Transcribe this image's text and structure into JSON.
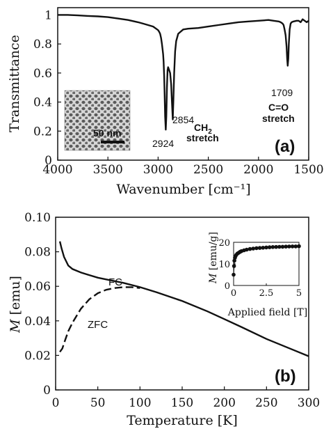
{
  "chart_data": [
    {
      "type": "line",
      "panel": "(a)",
      "xlabel": "Wavenumber [cm⁻¹]",
      "ylabel": "Transmittance",
      "xlim": [
        4000,
        1500
      ],
      "ylim": [
        0,
        1.05
      ],
      "x_ticks": [
        "4000",
        "3500",
        "3000",
        "2500",
        "2000",
        "1500"
      ],
      "y_ticks": [
        "0",
        "0.2",
        "0.4",
        "0.6",
        "0.8",
        "1"
      ],
      "series": [
        {
          "x": [
            4000,
            3900,
            3800,
            3700,
            3600,
            3500,
            3400,
            3300,
            3200,
            3150,
            3100,
            3050,
            3020,
            3000,
            2990,
            2980,
            2970,
            2962,
            2955,
            2950,
            2945,
            2940,
            2935,
            2930,
            2924,
            2918,
            2912,
            2906,
            2900,
            2890,
            2880,
            2870,
            2862,
            2854,
            2848,
            2840,
            2830,
            2820,
            2800,
            2750,
            2700,
            2600,
            2500,
            2400,
            2300,
            2200,
            2100,
            2000,
            1900,
            1850,
            1800,
            1780,
            1760,
            1750,
            1740,
            1730,
            1720,
            1715,
            1709,
            1703,
            1698,
            1690,
            1680,
            1670,
            1650,
            1620,
            1600,
            1580,
            1560,
            1540,
            1520,
            1500
          ],
          "y": [
            1.0,
            1.0,
            0.997,
            0.993,
            0.99,
            0.985,
            0.975,
            0.965,
            0.95,
            0.94,
            0.93,
            0.92,
            0.905,
            0.895,
            0.885,
            0.87,
            0.84,
            0.8,
            0.76,
            0.73,
            0.68,
            0.58,
            0.45,
            0.3,
            0.21,
            0.3,
            0.5,
            0.62,
            0.64,
            0.62,
            0.6,
            0.52,
            0.4,
            0.28,
            0.4,
            0.6,
            0.75,
            0.82,
            0.87,
            0.9,
            0.905,
            0.91,
            0.92,
            0.93,
            0.94,
            0.95,
            0.955,
            0.96,
            0.965,
            0.96,
            0.955,
            0.95,
            0.94,
            0.93,
            0.9,
            0.86,
            0.78,
            0.7,
            0.65,
            0.7,
            0.8,
            0.9,
            0.94,
            0.95,
            0.955,
            0.96,
            0.96,
            0.95,
            0.97,
            0.96,
            0.95,
            0.96
          ]
        }
      ],
      "annotations": [
        {
          "text": "2924",
          "x": 2924,
          "y": 0.18
        },
        {
          "text": "2854",
          "x": 2854,
          "y": 0.33
        },
        {
          "text": "1709",
          "x": 1709,
          "y": 0.49
        },
        {
          "text_main": "CH",
          "text_sub": "2",
          "text_line2": "stretch"
        },
        {
          "text_line1": "C=O",
          "text_line2": "stretch"
        }
      ],
      "inset": {
        "scale_bar_label": "50 nm"
      }
    },
    {
      "type": "line",
      "panel": "(b)",
      "xlabel": "Temperature [K]",
      "ylabel_main": "M",
      "ylabel_unit": "[emu]",
      "xlim": [
        0,
        300
      ],
      "ylim": [
        0,
        0.1
      ],
      "x_ticks": [
        "0",
        "50",
        "100",
        "150",
        "200",
        "250",
        "300"
      ],
      "y_ticks": [
        "0",
        "0.02",
        "0.04",
        "0.06",
        "0.08",
        "0.10"
      ],
      "series": [
        {
          "name": "FC",
          "x": [
            5,
            7,
            10,
            15,
            20,
            30,
            40,
            50,
            60,
            80,
            100,
            120,
            150,
            180,
            200,
            220,
            250,
            280,
            300
          ],
          "y": [
            0.086,
            0.082,
            0.077,
            0.072,
            0.07,
            0.068,
            0.0665,
            0.065,
            0.064,
            0.062,
            0.0595,
            0.0565,
            0.0515,
            0.0455,
            0.041,
            0.0365,
            0.0295,
            0.0235,
            0.0195
          ]
        },
        {
          "name": "ZFC",
          "x": [
            5,
            8,
            10,
            15,
            20,
            25,
            30,
            40,
            50,
            60,
            70,
            80,
            90,
            100
          ],
          "y": [
            0.022,
            0.024,
            0.027,
            0.034,
            0.039,
            0.043,
            0.047,
            0.0525,
            0.056,
            0.058,
            0.059,
            0.0595,
            0.0595,
            0.059
          ]
        }
      ],
      "inset": {
        "xlabel": "Applied field [T]",
        "ylabel_main": "M",
        "ylabel_unit": "[emu/g]",
        "xlim": [
          0,
          5
        ],
        "ylim": [
          0,
          20
        ],
        "x_ticks": [
          "0",
          "2.5",
          "5"
        ],
        "y_ticks": [
          "0",
          "10",
          "20"
        ],
        "points": {
          "x": [
            0.0,
            0.03,
            0.06,
            0.1,
            0.15,
            0.2,
            0.3,
            0.4,
            0.5,
            0.6,
            0.8,
            1.0,
            1.25,
            1.5,
            1.75,
            2.0,
            2.25,
            2.5,
            2.75,
            3.0,
            3.25,
            3.5,
            3.75,
            4.0,
            4.25,
            4.5,
            4.75,
            5.0
          ],
          "y": [
            5.0,
            9.0,
            11.5,
            12.8,
            13.6,
            14.2,
            14.8,
            15.2,
            15.6,
            15.9,
            16.3,
            16.6,
            16.9,
            17.1,
            17.3,
            17.4,
            17.5,
            17.6,
            17.7,
            17.8,
            17.85,
            17.9,
            17.95,
            18.0,
            18.05,
            18.1,
            18.1,
            18.2
          ]
        }
      }
    }
  ]
}
